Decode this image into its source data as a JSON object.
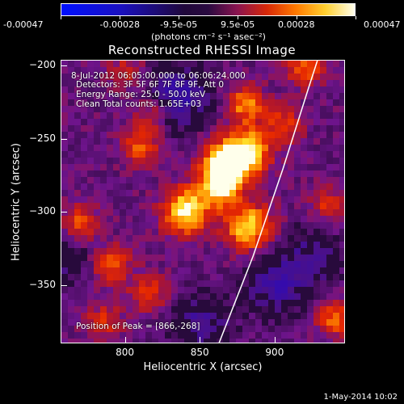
{
  "chart_data": {
    "type": "heatmap",
    "title": "Reconstructed RHESSI Image",
    "xlabel": "Heliocentric X (arcsec)",
    "ylabel": "Heliocentric Y (arcsec)",
    "xlim": [
      757,
      947
    ],
    "ylim": [
      -390,
      -196
    ],
    "x_ticks": [
      800,
      850,
      900
    ],
    "y_ticks": [
      -200,
      -250,
      -300,
      -350
    ],
    "colorbar": {
      "range": [
        -0.00047,
        0.00047
      ],
      "tick_labels": [
        "-0.00047",
        "-0.00028",
        "-9.5e-05",
        "9.5e-05",
        "0.00028",
        "0.00047"
      ],
      "units": "(photons cm⁻² s⁻¹ asec⁻²)"
    },
    "annotations": {
      "time_range": "8-Jul-2012 06:05:00.000 to 06:06:24.000",
      "detectors": "Detectors: 3F 5F 6F 7F 8F 9F, Att 0",
      "energy": "Energy Range: 25.0 - 50.0 keV",
      "clean": "Clean    Total counts: 1.65E+03",
      "peak": "Position of Peak = [866,-268]"
    },
    "peak_position": [
      866,
      -268
    ],
    "limb_curve": [
      [
        862,
        -390
      ],
      [
        885,
        -330
      ],
      [
        905,
        -270
      ],
      [
        922,
        -215
      ],
      [
        928,
        -196
      ]
    ],
    "sources": [
      {
        "x": 866,
        "y": -268,
        "amp": 1.0
      },
      {
        "x": 882,
        "y": -258,
        "amp": 0.75
      },
      {
        "x": 840,
        "y": -299,
        "amp": 0.85
      },
      {
        "x": 882,
        "y": -310,
        "amp": 0.8
      },
      {
        "x": 862,
        "y": -284,
        "amp": 0.6
      },
      {
        "x": 880,
        "y": -226,
        "amp": 0.55
      },
      {
        "x": 905,
        "y": -240,
        "amp": 0.4
      },
      {
        "x": 810,
        "y": -255,
        "amp": 0.45
      },
      {
        "x": 818,
        "y": -232,
        "amp": 0.4
      },
      {
        "x": 790,
        "y": -335,
        "amp": 0.5
      },
      {
        "x": 815,
        "y": -355,
        "amp": 0.45
      },
      {
        "x": 770,
        "y": -308,
        "amp": 0.5
      },
      {
        "x": 785,
        "y": -375,
        "amp": 0.35
      },
      {
        "x": 940,
        "y": -372,
        "amp": 0.55
      },
      {
        "x": 935,
        "y": -295,
        "amp": 0.35
      },
      {
        "x": 920,
        "y": -200,
        "amp": 0.55
      },
      {
        "x": 800,
        "y": -205,
        "amp": 0.3
      },
      {
        "x": 835,
        "y": -220,
        "amp": -0.6
      },
      {
        "x": 900,
        "y": -350,
        "amp": -0.45
      },
      {
        "x": 850,
        "y": -375,
        "amp": -0.4
      },
      {
        "x": 760,
        "y": -330,
        "amp": -0.3
      },
      {
        "x": 925,
        "y": -330,
        "amp": -0.35
      }
    ],
    "footer_date": "1-May-2014 10:02"
  }
}
